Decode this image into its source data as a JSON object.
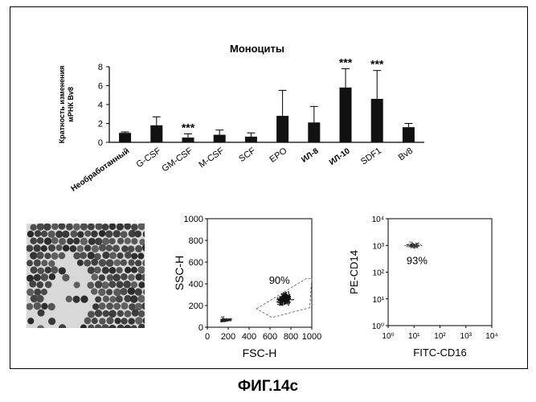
{
  "figure_caption": "ФИГ.14с",
  "chart_data": [
    {
      "type": "bar",
      "title": "Моноциты",
      "ylabel": "Кратность изменения мРНК Bv8",
      "ylabel_lines": [
        "Кратность изменения",
        "мРНК Bv8"
      ],
      "ylim": [
        0,
        8
      ],
      "yticks": [
        "0",
        "2",
        "4",
        "6",
        "8"
      ],
      "categories": [
        "Необработанный",
        "G-CSF",
        "GM-CSF",
        "M-CSF",
        "SCF",
        "EPO",
        "ИЛ-8",
        "ИЛ-10",
        "SDF1",
        "Bv8"
      ],
      "bold_categories": [
        "Необработанный",
        "ИЛ-8",
        "ИЛ-10"
      ],
      "values": [
        1.0,
        1.8,
        0.5,
        0.8,
        0.6,
        2.8,
        2.1,
        5.8,
        4.6,
        1.6
      ],
      "error": [
        0.1,
        0.9,
        0.4,
        0.5,
        0.4,
        2.7,
        1.7,
        2.0,
        3.0,
        0.4
      ],
      "annotations": [
        "",
        "",
        "***",
        "",
        "",
        "",
        "",
        "***",
        "***",
        ""
      ]
    },
    {
      "type": "scatter",
      "xlabel": "FSC-H",
      "ylabel": "SSC-H",
      "xlim": [
        0,
        1000
      ],
      "ylim": [
        0,
        1000
      ],
      "xticks": [
        "0",
        "200",
        "400",
        "600",
        "800",
        "1000"
      ],
      "yticks": [
        "0",
        "200",
        "400",
        "600",
        "800",
        "1000"
      ],
      "gate_label": "90%",
      "clusters": [
        {
          "x": 740,
          "y": 260
        },
        {
          "x": 130,
          "y": 40
        }
      ]
    },
    {
      "type": "scatter",
      "xlabel": "FITC-CD16",
      "ylabel": "PE-CD14",
      "xscale": "log",
      "yscale": "log",
      "xlim": [
        1,
        10000
      ],
      "ylim": [
        1,
        10000
      ],
      "xticks": [
        "10⁰",
        "10¹",
        "10²",
        "10³",
        "10⁴"
      ],
      "yticks": [
        "10⁰",
        "10¹",
        "10²",
        "10³",
        "10⁴"
      ],
      "gate_label": "93%",
      "clusters": [
        {
          "x": 10,
          "y": 1000
        }
      ]
    }
  ]
}
